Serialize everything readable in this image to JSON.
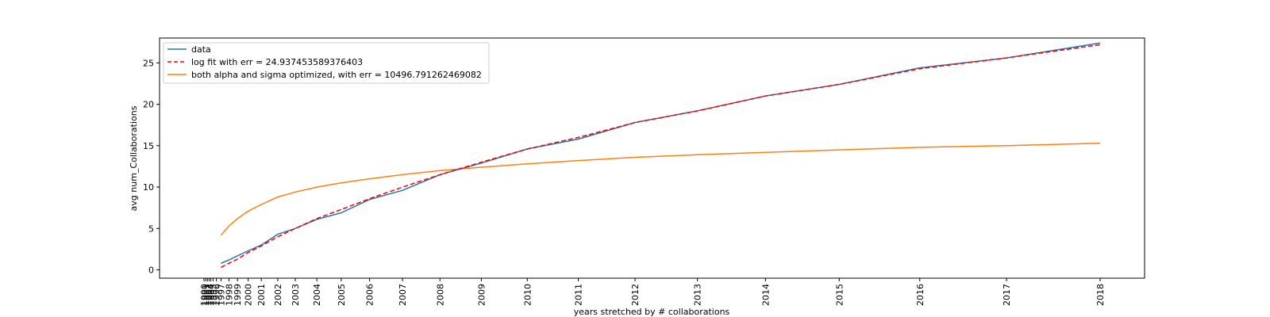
{
  "chart_data": {
    "type": "line",
    "title": "",
    "xlabel": "years stretched by # collaborations",
    "ylabel": "avg num_Collaborations",
    "ylim": [
      -1,
      28
    ],
    "yticks": [
      0,
      5,
      10,
      15,
      20,
      25
    ],
    "grid": false,
    "legend_position": "top-left",
    "xticks": [
      {
        "label": "1990",
        "x": 0.0
      },
      {
        "label": "1991",
        "x": 0.3
      },
      {
        "label": "1992",
        "x": 0.6
      },
      {
        "label": "1993",
        "x": 0.9
      },
      {
        "label": "1994",
        "x": 1.2
      },
      {
        "label": "1995",
        "x": 1.6
      },
      {
        "label": "1996",
        "x": 2.2
      },
      {
        "label": "1997",
        "x": 3.0
      },
      {
        "label": "1998",
        "x": 4.4
      },
      {
        "label": "1999",
        "x": 5.9
      },
      {
        "label": "2000",
        "x": 7.8
      },
      {
        "label": "2001",
        "x": 10.1
      },
      {
        "label": "2002",
        "x": 13.0
      },
      {
        "label": "2003",
        "x": 16.1
      },
      {
        "label": "2004",
        "x": 19.9
      },
      {
        "label": "2005",
        "x": 24.2
      },
      {
        "label": "2006",
        "x": 29.2
      },
      {
        "label": "2007",
        "x": 35.0
      },
      {
        "label": "2008",
        "x": 41.6
      },
      {
        "label": "2009",
        "x": 48.9
      },
      {
        "label": "2010",
        "x": 57.0
      },
      {
        "label": "2011",
        "x": 66.0
      },
      {
        "label": "2012",
        "x": 76.0
      },
      {
        "label": "2013",
        "x": 87.0
      },
      {
        "label": "2014",
        "x": 99.0
      },
      {
        "label": "2015",
        "x": 112.0
      },
      {
        "label": "2016",
        "x": 126.2
      },
      {
        "label": "2017",
        "x": 141.5
      },
      {
        "label": "2018",
        "x": 158.0
      }
    ],
    "series": [
      {
        "name": "data",
        "color": "#1f77b4",
        "style": "solid",
        "x": [
          3.0,
          4.4,
          5.9,
          7.8,
          10.1,
          13.0,
          16.1,
          19.9,
          24.2,
          29.2,
          35.0,
          41.6,
          48.9,
          57.0,
          66.0,
          76.0,
          87.0,
          99.0,
          112.0,
          126.2,
          141.5,
          158.0
        ],
        "y": [
          0.8,
          1.2,
          1.7,
          2.3,
          3.0,
          4.3,
          5.0,
          6.1,
          6.9,
          8.5,
          9.6,
          11.5,
          12.9,
          14.6,
          15.8,
          17.8,
          19.2,
          21.0,
          22.4,
          24.4,
          25.6,
          27.4
        ]
      },
      {
        "name": "log fit with err = 24.937453589376403",
        "color": "#ff0000",
        "style": "dashed",
        "x": [
          3.0,
          4.4,
          5.9,
          7.8,
          10.1,
          13.0,
          16.1,
          19.9,
          24.2,
          29.2,
          35.0,
          41.6,
          48.9,
          57.0,
          66.0,
          76.0,
          87.0,
          99.0,
          112.0,
          126.2,
          141.5,
          158.0
        ],
        "y": [
          0.3,
          0.8,
          1.3,
          2.1,
          2.9,
          4.0,
          5.0,
          6.2,
          7.3,
          8.6,
          10.0,
          11.5,
          13.0,
          14.6,
          16.0,
          17.8,
          19.2,
          21.0,
          22.4,
          24.3,
          25.6,
          27.2
        ]
      },
      {
        "name": "both alpha and sigma optimized, with err = 10496.791262469082",
        "color": "#ff7f0e",
        "style": "solid",
        "x": [
          3.0,
          4.4,
          5.9,
          7.8,
          10.1,
          13.0,
          16.1,
          19.9,
          24.2,
          29.2,
          35.0,
          41.6,
          48.9,
          57.0,
          66.0,
          76.0,
          87.0,
          99.0,
          112.0,
          126.2,
          141.5,
          158.0
        ],
        "y": [
          4.2,
          5.3,
          6.2,
          7.1,
          7.9,
          8.8,
          9.4,
          10.0,
          10.5,
          11.0,
          11.5,
          12.0,
          12.4,
          12.8,
          13.2,
          13.6,
          13.9,
          14.2,
          14.5,
          14.8,
          15.0,
          15.3
        ]
      }
    ]
  }
}
